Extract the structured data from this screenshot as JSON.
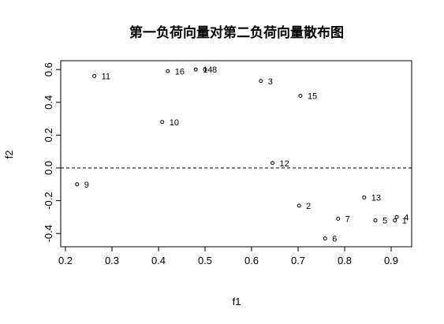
{
  "chart_data": {
    "type": "scatter",
    "title": "第一负荷向量对第二负荷向量散布图",
    "xlabel": "f1",
    "ylabel": "f2",
    "xlim": [
      0.2,
      0.93
    ],
    "ylim": [
      -0.45,
      0.66
    ],
    "x_ticks": [
      "0.2",
      "0.3",
      "0.4",
      "0.5",
      "0.6",
      "0.7",
      "0.8",
      "0.9"
    ],
    "y_ticks": [
      "-0.4",
      "-0.2",
      "0.0",
      "0.2",
      "0.4",
      "0.6"
    ],
    "reference_line": {
      "y": 0.0,
      "style": "dashed"
    },
    "grid": false,
    "points": [
      {
        "label": "1",
        "x": 0.908,
        "y": -0.32
      },
      {
        "label": "2",
        "x": 0.702,
        "y": -0.23
      },
      {
        "label": "3",
        "x": 0.62,
        "y": 0.53
      },
      {
        "label": "4",
        "x": 0.912,
        "y": -0.3
      },
      {
        "label": "5",
        "x": 0.866,
        "y": -0.32
      },
      {
        "label": "6",
        "x": 0.758,
        "y": -0.43
      },
      {
        "label": "7",
        "x": 0.786,
        "y": -0.31
      },
      {
        "label": "8",
        "x": 0.5,
        "y": 0.6
      },
      {
        "label": "9",
        "x": 0.225,
        "y": -0.1
      },
      {
        "label": "10",
        "x": 0.408,
        "y": 0.28
      },
      {
        "label": "11",
        "x": 0.262,
        "y": 0.56
      },
      {
        "label": "12",
        "x": 0.645,
        "y": 0.03
      },
      {
        "label": "13",
        "x": 0.842,
        "y": -0.18
      },
      {
        "label": "14",
        "x": 0.48,
        "y": 0.6
      },
      {
        "label": "15",
        "x": 0.705,
        "y": 0.44
      },
      {
        "label": "16",
        "x": 0.42,
        "y": 0.59
      }
    ]
  }
}
